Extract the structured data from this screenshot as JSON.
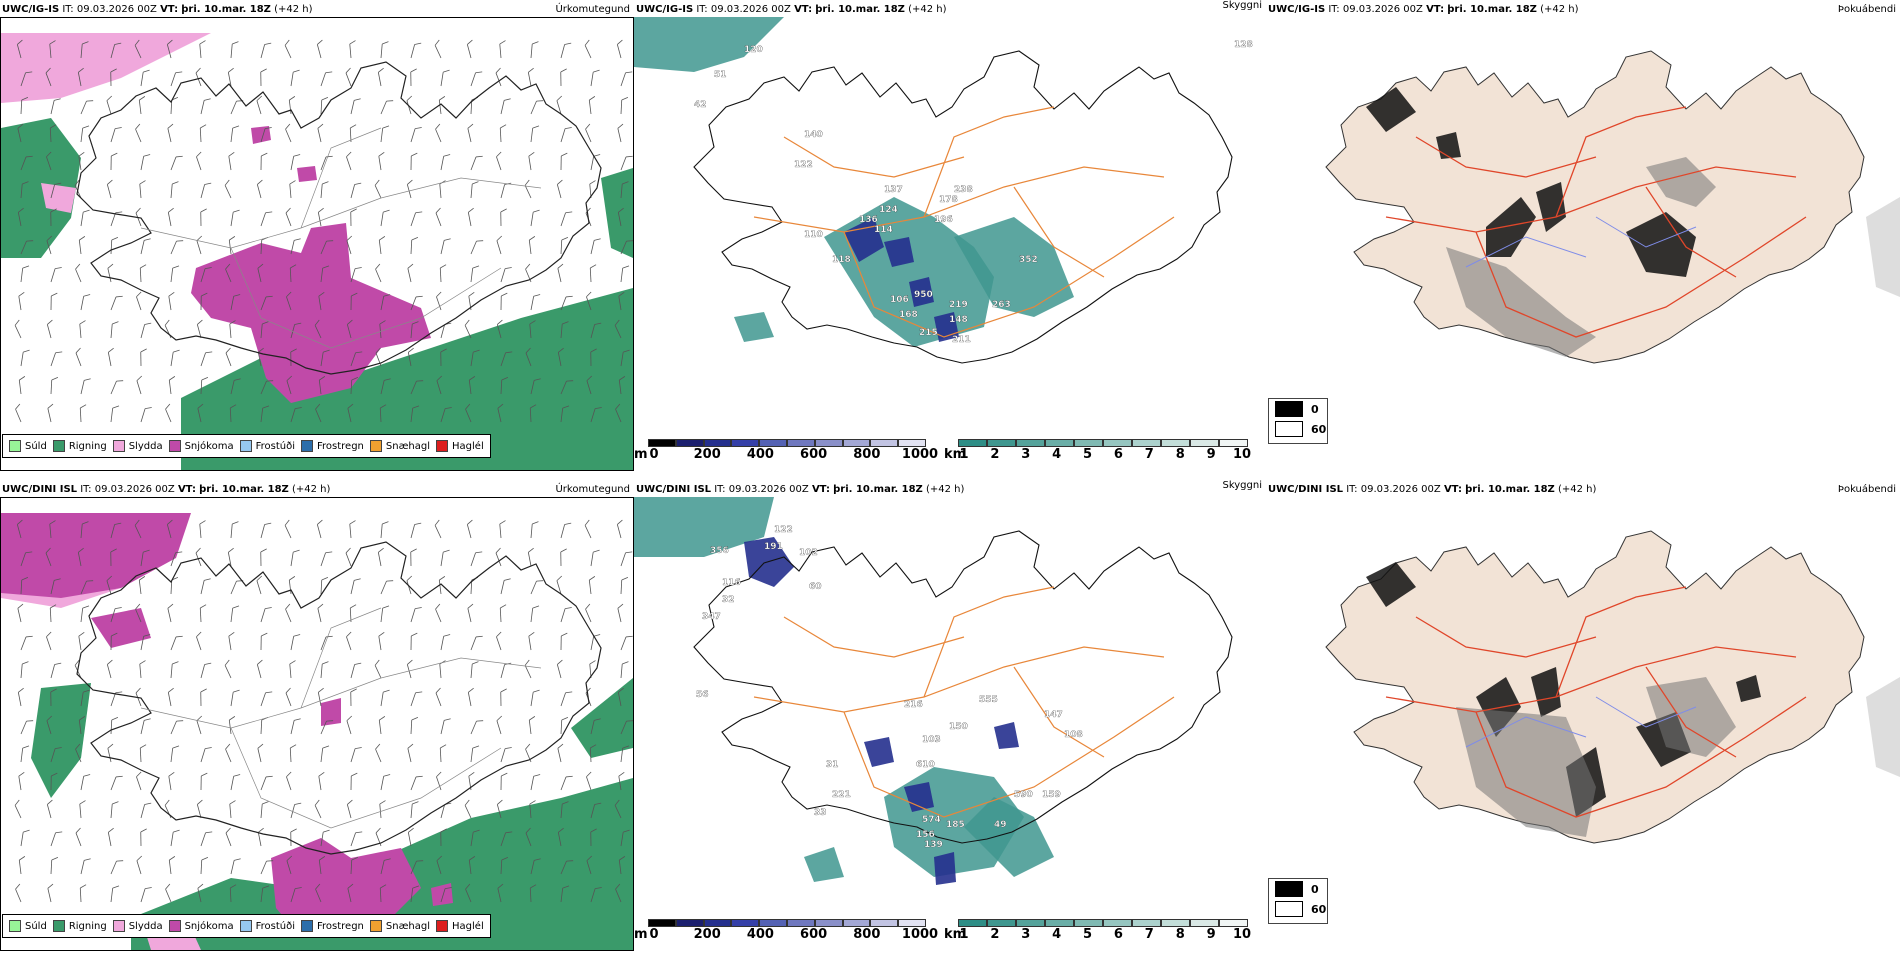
{
  "rows": [
    {
      "model": "UWC/IG-IS",
      "it_label": "IT:",
      "it_value": "09.03.2026 00Z",
      "vt_label": "VT:",
      "vt_value": "þri. 10.mar. 18Z",
      "lead": "(+42 h)",
      "cloud_labels": [
        "120",
        "140",
        "122",
        "137",
        "124",
        "238",
        "178",
        "136",
        "114",
        "196",
        "110",
        "352",
        "118",
        "950",
        "219",
        "168",
        "148",
        "215",
        "211",
        "263",
        "106",
        "128",
        "42",
        "51"
      ]
    },
    {
      "model": "UWC/DINI ISL",
      "it_label": "IT:",
      "it_value": "09.03.2026 00Z",
      "vt_label": "VT:",
      "vt_value": "þri. 10.mar. 18Z",
      "lead": "(+42 h)",
      "cloud_labels": [
        "122",
        "191",
        "102",
        "60",
        "356",
        "116",
        "347",
        "32",
        "216",
        "150",
        "555",
        "103",
        "610",
        "147",
        "108",
        "590",
        "159",
        "574",
        "156",
        "185",
        "139",
        "49",
        "221",
        "33",
        "56",
        "31"
      ]
    }
  ],
  "panel_titles": {
    "precip_type": "Úrkomutegund",
    "visibility": "Skyggni",
    "fog": "Þokuábendi"
  },
  "precip_legend": [
    {
      "label": "Súld",
      "color": "#98f598"
    },
    {
      "label": "Rigning",
      "color": "#3a9a6a"
    },
    {
      "label": "Slydda",
      "color": "#f0a8dc"
    },
    {
      "label": "Snjókoma",
      "color": "#c04aa8"
    },
    {
      "label": "Frostúði",
      "color": "#96c8f0"
    },
    {
      "label": "Frostregn",
      "color": "#2c6eaa"
    },
    {
      "label": "Snæhagl",
      "color": "#f0a030"
    },
    {
      "label": "Haglél",
      "color": "#dc1e1e"
    }
  ],
  "cloudbase_bar": {
    "unit": "m",
    "ticks": [
      "0",
      "200",
      "400",
      "600",
      "800",
      "1000"
    ],
    "colors": [
      "#000000",
      "#1b1f6e",
      "#25308e",
      "#3540a8",
      "#5462b4",
      "#6f78bf",
      "#8a90c9",
      "#a3a8d5",
      "#c2c4e3",
      "#e2e3f2"
    ]
  },
  "visibility_bar": {
    "unit": "km",
    "ticks": [
      "1",
      "2",
      "3",
      "4",
      "5",
      "6",
      "7",
      "8",
      "9",
      "10"
    ],
    "colors": [
      "#2e8e86",
      "#3f978f",
      "#55a39b",
      "#6aaea7",
      "#80bab3",
      "#96c6c0",
      "#acd2cd",
      "#c3ded9",
      "#dae9e6",
      "#f1f6f5"
    ]
  },
  "fog_legend": [
    {
      "label": "0",
      "color": "#000000"
    },
    {
      "label": "60",
      "color": "#ffffff"
    }
  ]
}
